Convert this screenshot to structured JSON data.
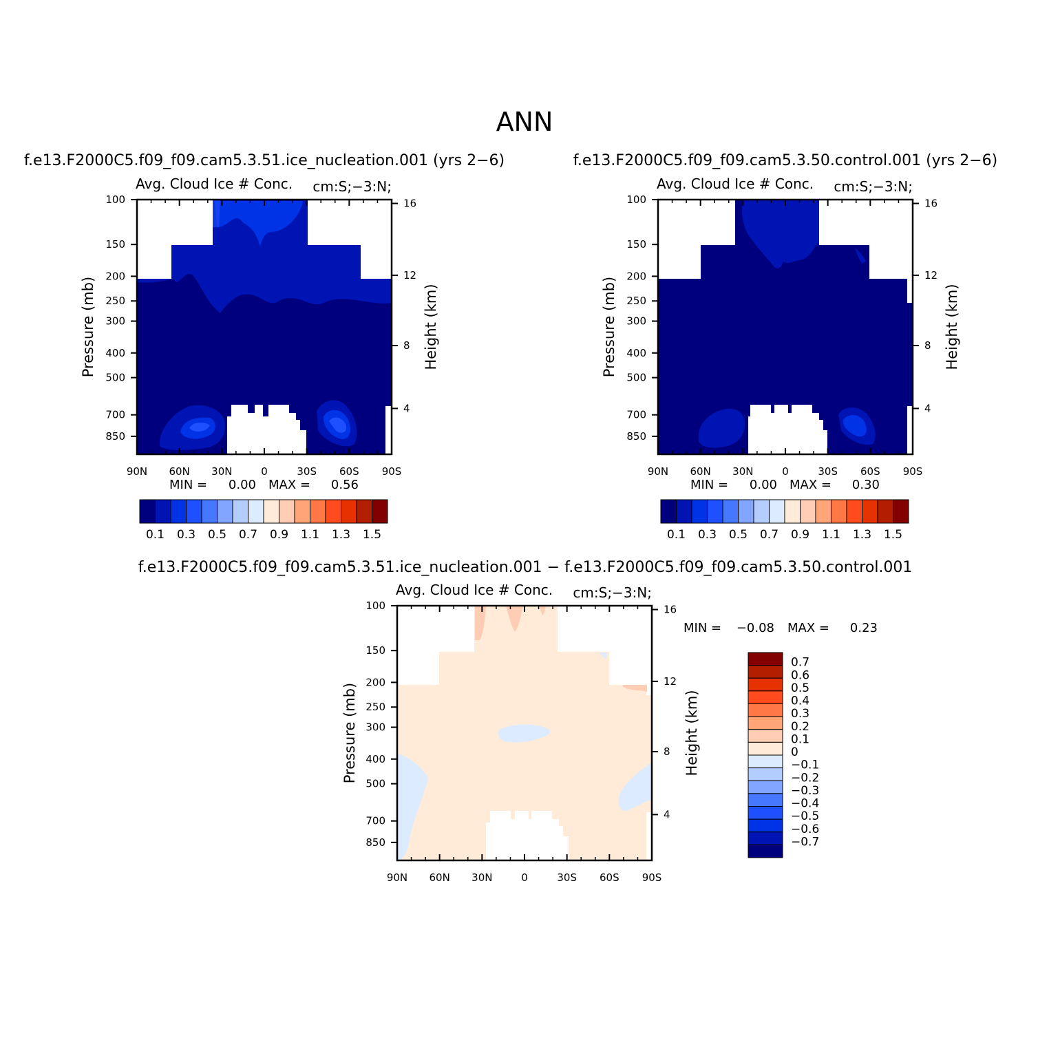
{
  "figure": {
    "title": "ANN",
    "colors": {
      "blues": [
        "#00007f",
        "#0014b4",
        "#0032e6",
        "#1e50ff",
        "#4678ff",
        "#82a5ff",
        "#b4cdff",
        "#dcebff"
      ],
      "reds": [
        "#ffebd7",
        "#ffcdb4",
        "#ffa578",
        "#ff7846",
        "#ff4b1e",
        "#e63200",
        "#b41e00",
        "#820000"
      ],
      "missing": "#ffffff"
    }
  },
  "chart_data": [
    {
      "type": "heatmap",
      "panel": "case",
      "run_title": "f.e13.F2000C5.f09_f09.cam5.3.51.ice_nucleation.001  (yrs  2−6)",
      "left_title": "Avg.  Cloud  Ice  #  Conc.",
      "right_title": "cm:S;−3:N;",
      "x_label": "",
      "y_label": "Pressure  (mb)",
      "y2_label": "Height  (km)",
      "x_ticks": [
        "90N",
        "60N",
        "30N",
        "0",
        "30S",
        "60S",
        "90S"
      ],
      "x_values": [
        90,
        60,
        30,
        0,
        -30,
        -60,
        -90
      ],
      "y_ticks": [
        "100",
        "150",
        "200",
        "250",
        "300",
        "400",
        "500",
        "700",
        "850"
      ],
      "y_values": [
        100,
        150,
        200,
        250,
        300,
        400,
        500,
        700,
        850
      ],
      "y2_ticks": [
        "16",
        "12",
        "8",
        "4"
      ],
      "y_scale": "log",
      "ylim": [
        100,
        1000
      ],
      "xlim": [
        90,
        -90
      ],
      "min_label": "MIN  =",
      "min_value": "0.00",
      "max_label": "MAX  =",
      "max_value": "0.56",
      "colorbar_labels": [
        "0.1",
        "0.3",
        "0.5",
        "0.7",
        "0.9",
        "1.1",
        "1.3",
        "1.5"
      ],
      "colorbar_levels": [
        0.1,
        0.2,
        0.3,
        0.4,
        0.5,
        0.6,
        0.7,
        0.8,
        0.9,
        1.0,
        1.1,
        1.2,
        1.3,
        1.4,
        1.5
      ]
    },
    {
      "type": "heatmap",
      "panel": "control",
      "run_title": "f.e13.F2000C5.f09_f09.cam5.3.50.control.001  (yrs  2−6)",
      "left_title": "Avg.  Cloud  Ice  #  Conc.",
      "right_title": "cm:S;−3:N;",
      "x_label": "",
      "y_label": "Pressure  (mb)",
      "y2_label": "Height  (km)",
      "x_ticks": [
        "90N",
        "60N",
        "30N",
        "0",
        "30S",
        "60S",
        "90S"
      ],
      "x_values": [
        90,
        60,
        30,
        0,
        -30,
        -60,
        -90
      ],
      "y_ticks": [
        "100",
        "150",
        "200",
        "250",
        "300",
        "400",
        "500",
        "700",
        "850"
      ],
      "y_values": [
        100,
        150,
        200,
        250,
        300,
        400,
        500,
        700,
        850
      ],
      "y2_ticks": [
        "16",
        "12",
        "8",
        "4"
      ],
      "y_scale": "log",
      "ylim": [
        100,
        1000
      ],
      "xlim": [
        90,
        -90
      ],
      "min_label": "MIN  =",
      "min_value": "0.00",
      "max_label": "MAX  =",
      "max_value": "0.30",
      "colorbar_labels": [
        "0.1",
        "0.3",
        "0.5",
        "0.7",
        "0.9",
        "1.1",
        "1.3",
        "1.5"
      ],
      "colorbar_levels": [
        0.1,
        0.2,
        0.3,
        0.4,
        0.5,
        0.6,
        0.7,
        0.8,
        0.9,
        1.0,
        1.1,
        1.2,
        1.3,
        1.4,
        1.5
      ]
    },
    {
      "type": "heatmap",
      "panel": "difference",
      "run_title": "f.e13.F2000C5.f09_f09.cam5.3.51.ice_nucleation.001  −  f.e13.F2000C5.f09_f09.cam5.3.50.control.001",
      "left_title": "Avg.  Cloud  Ice  #  Conc.",
      "right_title": "cm:S;−3:N;",
      "x_label": "",
      "y_label": "Pressure  (mb)",
      "y2_label": "Height  (km)",
      "x_ticks": [
        "90N",
        "60N",
        "30N",
        "0",
        "30S",
        "60S",
        "90S"
      ],
      "x_values": [
        90,
        60,
        30,
        0,
        -30,
        -60,
        -90
      ],
      "y_ticks": [
        "100",
        "150",
        "200",
        "250",
        "300",
        "400",
        "500",
        "700",
        "850"
      ],
      "y_values": [
        100,
        150,
        200,
        250,
        300,
        400,
        500,
        700,
        850
      ],
      "y2_ticks": [
        "16",
        "12",
        "8",
        "4"
      ],
      "y_scale": "log",
      "ylim": [
        100,
        1000
      ],
      "xlim": [
        90,
        -90
      ],
      "min_label": "MIN  =",
      "min_value": "−0.08",
      "max_label": "MAX  =",
      "max_value": "0.23",
      "colorbar_labels": [
        "0.7",
        "0.6",
        "0.5",
        "0.4",
        "0.3",
        "0.2",
        "0.1",
        "0",
        "−0.1",
        "−0.2",
        "−0.3",
        "−0.4",
        "−0.5",
        "−0.6",
        "−0.7"
      ],
      "colorbar_levels": [
        0.7,
        0.6,
        0.5,
        0.4,
        0.3,
        0.2,
        0.1,
        0,
        -0.1,
        -0.2,
        -0.3,
        -0.4,
        -0.5,
        -0.6,
        -0.7
      ]
    }
  ]
}
